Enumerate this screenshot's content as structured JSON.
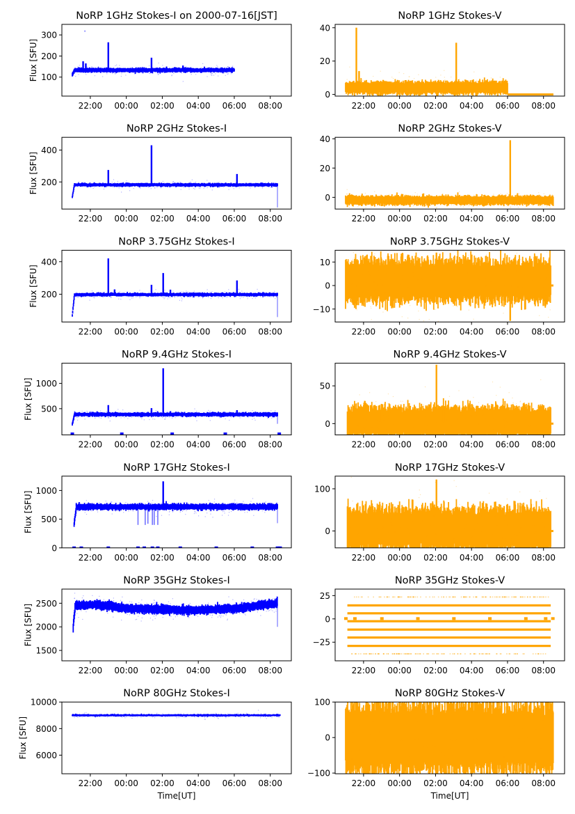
{
  "figure": {
    "xlabel": "Time[UT]",
    "ylabel": "Flux [SFU]",
    "x_ticks": [
      "22:00",
      "00:00",
      "02:00",
      "04:00",
      "06:00",
      "08:00"
    ],
    "colors": {
      "stokes_i": "#0000ff",
      "stokes_v": "#ffa500"
    }
  },
  "chart_data": [
    {
      "type": "scatter",
      "title": "NoRP 1GHz Stokes-I on 2000-07-16[JST]",
      "stokes": "I",
      "xlabel": "",
      "ylabel": "Flux [SFU]",
      "x_range_hours": [
        20.42,
        33.17
      ],
      "ylim": [
        10,
        350
      ],
      "y_ticks": [
        100,
        200,
        300
      ],
      "data_span_hours": [
        21.0,
        30.0
      ],
      "baseline": 133,
      "noise": 4,
      "ramp_start": 110,
      "events": [
        {
          "t": 21.6,
          "peak": 175
        },
        {
          "t": 21.75,
          "peak": 165
        },
        {
          "t": 23.0,
          "peak": 265
        },
        {
          "t": 25.4,
          "peak": 192
        },
        {
          "t": 27.15,
          "peak": 155
        }
      ],
      "outliers": [
        {
          "t": 21.7,
          "v": 318
        }
      ]
    },
    {
      "type": "scatter",
      "title": "NoRP 1GHz Stokes-V",
      "stokes": "V",
      "xlabel": "",
      "ylabel": "",
      "x_range_hours": [
        20.42,
        33.17
      ],
      "ylim": [
        -1,
        42
      ],
      "y_ticks": [
        0,
        20,
        40
      ],
      "data_span_hours": [
        21.0,
        30.0
      ],
      "baseline": 4,
      "noise": 1.5,
      "tail": {
        "from": 30.0,
        "to": 32.55,
        "value": 0
      },
      "events": [
        {
          "t": 21.6,
          "peak": 40
        },
        {
          "t": 21.75,
          "peak": 14
        },
        {
          "t": 27.15,
          "peak": 31
        }
      ]
    },
    {
      "type": "scatter",
      "title": "NoRP 2GHz Stokes-I",
      "stokes": "I",
      "xlabel": "",
      "ylabel": "Flux [SFU]",
      "x_range_hours": [
        20.42,
        33.17
      ],
      "ylim": [
        30,
        480
      ],
      "y_ticks": [
        200,
        400
      ],
      "data_span_hours": [
        21.0,
        32.4
      ],
      "baseline": 182,
      "noise": 4,
      "ramp_start": 105,
      "end_drop": 40,
      "events": [
        {
          "t": 23.0,
          "peak": 275
        },
        {
          "t": 25.4,
          "peak": 430
        },
        {
          "t": 30.15,
          "peak": 250
        }
      ]
    },
    {
      "type": "scatter",
      "title": "NoRP 2GHz Stokes-V",
      "stokes": "V",
      "xlabel": "",
      "ylabel": "",
      "x_range_hours": [
        20.42,
        33.17
      ],
      "ylim": [
        -8,
        41
      ],
      "y_ticks": [
        0,
        20,
        40
      ],
      "data_span_hours": [
        21.0,
        32.55
      ],
      "baseline": -2,
      "noise": 1.2,
      "events": [
        {
          "t": 30.15,
          "peak": 39
        },
        {
          "t": 21.9,
          "peak": -6
        },
        {
          "t": 23.0,
          "peak": -6
        },
        {
          "t": 25.4,
          "peak": -6
        }
      ]
    },
    {
      "type": "scatter",
      "title": "NoRP 3.75GHz Stokes-I",
      "stokes": "I",
      "xlabel": "",
      "ylabel": "Flux [SFU]",
      "x_range_hours": [
        20.42,
        33.17
      ],
      "ylim": [
        30,
        470
      ],
      "y_ticks": [
        200,
        400
      ],
      "data_span_hours": [
        21.0,
        32.4
      ],
      "baseline": 198,
      "noise": 4,
      "ramp_start": 70,
      "end_drop": 60,
      "events": [
        {
          "t": 23.0,
          "peak": 420
        },
        {
          "t": 23.35,
          "peak": 230
        },
        {
          "t": 25.4,
          "peak": 258
        },
        {
          "t": 26.05,
          "peak": 330
        },
        {
          "t": 26.45,
          "peak": 228
        },
        {
          "t": 30.15,
          "peak": 285
        },
        {
          "t": 31.35,
          "peak": 212
        }
      ]
    },
    {
      "type": "scatter",
      "title": "NoRP 3.75GHz Stokes-V",
      "stokes": "V",
      "xlabel": "",
      "ylabel": "",
      "x_range_hours": [
        20.42,
        33.17
      ],
      "ylim": [
        -15.5,
        15
      ],
      "y_ticks": [
        -10,
        0,
        10
      ],
      "data_span_hours": [
        21.0,
        32.4
      ],
      "baseline": 2,
      "noise": 3.5,
      "tail": {
        "from": 32.4,
        "to": 32.55,
        "value": 0
      },
      "events": [
        {
          "t": 26.05,
          "peak": 14
        },
        {
          "t": 26.05,
          "peak": -7
        },
        {
          "t": 30.15,
          "peak": -15
        }
      ]
    },
    {
      "type": "scatter",
      "title": "NoRP 9.4GHz Stokes-I",
      "stokes": "I",
      "xlabel": "",
      "ylabel": "Flux [SFU]",
      "x_range_hours": [
        20.42,
        33.17
      ],
      "ylim": [
        -20,
        1400
      ],
      "y_ticks": [
        500,
        1000
      ],
      "data_span_hours": [
        21.0,
        32.4
      ],
      "baseline": 385,
      "noise": 15,
      "ramp_start": 190,
      "end_drop": 200,
      "events": [
        {
          "t": 23.0,
          "peak": 570
        },
        {
          "t": 23.4,
          "peak": 430
        },
        {
          "t": 25.4,
          "peak": 510
        },
        {
          "t": 26.05,
          "peak": 1300
        },
        {
          "t": 26.45,
          "peak": 450
        },
        {
          "t": 30.15,
          "peak": 470
        }
      ],
      "zero_marks": [
        21.0,
        23.75,
        26.55,
        29.5,
        32.5
      ]
    },
    {
      "type": "scatter",
      "title": "NoRP 9.4GHz Stokes-V",
      "stokes": "V",
      "xlabel": "",
      "ylabel": "",
      "x_range_hours": [
        20.42,
        33.17
      ],
      "ylim": [
        -15,
        80
      ],
      "y_ticks": [
        0,
        50
      ],
      "data_span_hours": [
        21.1,
        32.4
      ],
      "baseline": 2,
      "noise": 8,
      "tail": {
        "from": 32.4,
        "to": 32.55,
        "value": 0
      },
      "events": [
        {
          "t": 23.0,
          "peak": 26
        },
        {
          "t": 26.05,
          "peak": 78
        },
        {
          "t": 26.45,
          "peak": 18
        }
      ]
    },
    {
      "type": "scatter",
      "title": "NoRP 17GHz Stokes-I",
      "stokes": "I",
      "xlabel": "",
      "ylabel": "Flux [SFU]",
      "x_range_hours": [
        20.42,
        33.17
      ],
      "ylim": [
        0,
        1250
      ],
      "y_ticks": [
        0,
        500,
        1000
      ],
      "data_span_hours": [
        21.1,
        32.4
      ],
      "baseline": 715,
      "noise": 20,
      "ramp_start": 400,
      "end_drop": 430,
      "events": [
        {
          "t": 26.05,
          "peak": 1160
        }
      ],
      "dips": [
        {
          "t": 24.65,
          "v": 400
        },
        {
          "t": 25.05,
          "v": 400
        },
        {
          "t": 25.2,
          "v": 420
        },
        {
          "t": 25.45,
          "v": 400
        },
        {
          "t": 25.55,
          "v": 400
        },
        {
          "t": 25.75,
          "v": 400
        }
      ],
      "zero_marks": [
        21.1,
        21.5,
        23.0,
        24.65,
        25.0,
        25.45,
        25.75,
        27.0,
        29.0,
        31.0,
        32.4,
        32.55
      ]
    },
    {
      "type": "scatter",
      "title": "NoRP 17GHz Stokes-V",
      "stokes": "V",
      "xlabel": "",
      "ylabel": "",
      "x_range_hours": [
        20.42,
        33.17
      ],
      "ylim": [
        -40,
        130
      ],
      "y_ticks": [
        0,
        100
      ],
      "data_span_hours": [
        21.1,
        32.4
      ],
      "baseline": 5,
      "noise": 20,
      "tail": {
        "from": 32.4,
        "to": 32.55,
        "value": 0
      },
      "events": [
        {
          "t": 26.05,
          "peak": 122
        }
      ]
    },
    {
      "type": "scatter",
      "title": "NoRP 35GHz Stokes-I",
      "stokes": "I",
      "xlabel": "",
      "ylabel": "Flux [SFU]",
      "x_range_hours": [
        20.42,
        33.17
      ],
      "ylim": [
        1280,
        2800
      ],
      "y_ticks": [
        1500,
        2000,
        2500
      ],
      "data_span_hours": [
        21.05,
        32.4
      ],
      "baseline_curve": [
        [
          21.1,
          2450
        ],
        [
          22.5,
          2470
        ],
        [
          24.0,
          2390
        ],
        [
          26.0,
          2370
        ],
        [
          28.0,
          2350
        ],
        [
          30.0,
          2390
        ],
        [
          32.4,
          2500
        ]
      ],
      "noise": 35,
      "ramp_start": 2000,
      "end_drop": 2000,
      "events": [
        {
          "t": 26.05,
          "peak": 2480
        }
      ]
    },
    {
      "type": "scatter",
      "title": "NoRP 35GHz Stokes-V",
      "stokes": "V",
      "xlabel": "",
      "ylabel": "",
      "x_range_hours": [
        20.42,
        33.17
      ],
      "ylim": [
        -45,
        32
      ],
      "y_ticks": [
        -25,
        0,
        25
      ],
      "data_span_hours": [
        21.1,
        32.4
      ],
      "levels": [
        23.5,
        14.5,
        6,
        -2.5,
        -11.5,
        -20,
        -29,
        -37.5
      ],
      "sparse_levels": [
        23.5,
        -37.5
      ],
      "zero_marks": [
        21.0,
        21.5,
        23.0,
        25.0,
        27.0,
        29.0,
        31.0,
        32.1,
        32.5
      ]
    },
    {
      "type": "scatter",
      "title": "NoRP 80GHz Stokes-I",
      "stokes": "I",
      "xlabel": "Time[UT]",
      "ylabel": "Flux [SFU]",
      "x_range_hours": [
        20.42,
        33.17
      ],
      "ylim": [
        4600,
        10000
      ],
      "y_ticks": [
        6000,
        8000,
        10000
      ],
      "data_span_hours": [
        21.0,
        32.55
      ],
      "baseline": 9000,
      "noise": 30,
      "events": []
    },
    {
      "type": "scatter",
      "title": "NoRP 80GHz Stokes-V",
      "stokes": "V",
      "xlabel": "Time[UT]",
      "ylabel": "",
      "x_range_hours": [
        20.42,
        33.17
      ],
      "ylim": [
        -102,
        100
      ],
      "y_ticks": [
        -100,
        0,
        100
      ],
      "data_span_hours": [
        21.0,
        32.55
      ],
      "baseline": -2,
      "noise": 38,
      "events": []
    }
  ]
}
